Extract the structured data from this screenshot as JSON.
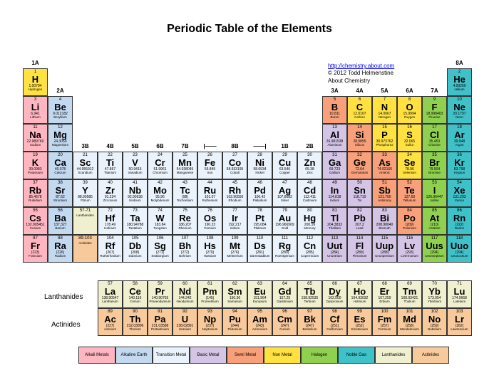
{
  "title": "Periodic Table of the Elements",
  "credits": {
    "url_text": "http://chemistry.about.com",
    "copyright": "© 2012 Todd Helmenstine",
    "site": "About Chemistry"
  },
  "cell_size": {
    "w": 35,
    "h": 39
  },
  "colors": {
    "alkali": "#ffb6c1",
    "alkaline_earth": "#c3d9f0",
    "transition": "#eaf2fb",
    "basic_metal": "#d4c5e6",
    "semi_metal": "#f7a07a",
    "non_metal": "#ffe242",
    "halogen": "#8fd14f",
    "noble_gas": "#3fc1c9",
    "lanthanide": "#f0f0d0",
    "actinide": "#f7c99b",
    "grid_border": "#333333"
  },
  "group_labels": [
    {
      "col": 0,
      "text": "1A"
    },
    {
      "col": 1,
      "text": "2A"
    },
    {
      "col": 2,
      "text": "3B"
    },
    {
      "col": 3,
      "text": "4B"
    },
    {
      "col": 4,
      "text": "5B"
    },
    {
      "col": 5,
      "text": "6B"
    },
    {
      "col": 6,
      "text": "7B"
    },
    {
      "col": 7,
      "text": "|——"
    },
    {
      "col": 8,
      "text": "8B"
    },
    {
      "col": 9,
      "text": "——|"
    },
    {
      "col": 10,
      "text": "1B"
    },
    {
      "col": 11,
      "text": "2B"
    },
    {
      "col": 12,
      "text": "3A"
    },
    {
      "col": 13,
      "text": "4A"
    },
    {
      "col": 14,
      "text": "5A"
    },
    {
      "col": 15,
      "text": "6A"
    },
    {
      "col": 16,
      "text": "7A"
    },
    {
      "col": 17,
      "text": "8A"
    }
  ],
  "group_label_rows": {
    "0": 0,
    "1": 1,
    "2": 3,
    "3": 3,
    "4": 3,
    "5": 3,
    "6": 3,
    "7": 3,
    "8": 3,
    "9": 3,
    "10": 3,
    "11": 3,
    "12": 1,
    "13": 1,
    "14": 1,
    "15": 1,
    "16": 1,
    "17": 0
  },
  "series_labels": {
    "lanthanides": "Lanthanides",
    "actinides": "Actinides"
  },
  "legend": [
    {
      "label": "Alkali Metals",
      "cat": "alkali"
    },
    {
      "label": "Alkaline Earth",
      "cat": "alkaline_earth"
    },
    {
      "label": "Transition Metal",
      "cat": "transition"
    },
    {
      "label": "Basic Metal",
      "cat": "basic_metal"
    },
    {
      "label": "Semi Metal",
      "cat": "semi_metal"
    },
    {
      "label": "Non Metal",
      "cat": "non_metal"
    },
    {
      "label": "Halogen",
      "cat": "halogen"
    },
    {
      "label": "Noble Gas",
      "cat": "noble_gas"
    },
    {
      "label": "Lanthanides",
      "cat": "lanthanide"
    },
    {
      "label": "Actinides",
      "cat": "actinide"
    }
  ],
  "elements": [
    {
      "n": 1,
      "s": "H",
      "m": "1.00794",
      "nm": "Hydrogen",
      "r": 0,
      "c": 0,
      "cat": "non_metal"
    },
    {
      "n": 2,
      "s": "He",
      "m": "4.00260",
      "nm": "Helium",
      "r": 0,
      "c": 17,
      "cat": "noble_gas"
    },
    {
      "n": 3,
      "s": "Li",
      "m": "6.941",
      "nm": "Lithium",
      "r": 1,
      "c": 0,
      "cat": "alkali"
    },
    {
      "n": 4,
      "s": "Be",
      "m": "9.012182",
      "nm": "Beryllium",
      "r": 1,
      "c": 1,
      "cat": "alkaline_earth"
    },
    {
      "n": 5,
      "s": "B",
      "m": "10.811",
      "nm": "Boron",
      "r": 1,
      "c": 12,
      "cat": "semi_metal"
    },
    {
      "n": 6,
      "s": "C",
      "m": "12.0107",
      "nm": "Carbon",
      "r": 1,
      "c": 13,
      "cat": "non_metal"
    },
    {
      "n": 7,
      "s": "N",
      "m": "14.0067",
      "nm": "Nitrogen",
      "r": 1,
      "c": 14,
      "cat": "non_metal"
    },
    {
      "n": 8,
      "s": "O",
      "m": "15.9994",
      "nm": "Oxygen",
      "r": 1,
      "c": 15,
      "cat": "non_metal"
    },
    {
      "n": 9,
      "s": "F",
      "m": "18.998403",
      "nm": "Fluorine",
      "r": 1,
      "c": 16,
      "cat": "halogen"
    },
    {
      "n": 10,
      "s": "Ne",
      "m": "20.1797",
      "nm": "Neon",
      "r": 1,
      "c": 17,
      "cat": "noble_gas"
    },
    {
      "n": 11,
      "s": "Na",
      "m": "22.989769",
      "nm": "Sodium",
      "r": 2,
      "c": 0,
      "cat": "alkali"
    },
    {
      "n": 12,
      "s": "Mg",
      "m": "24.3050",
      "nm": "Magnesium",
      "r": 2,
      "c": 1,
      "cat": "alkaline_earth"
    },
    {
      "n": 13,
      "s": "Al",
      "m": "26.981538",
      "nm": "Aluminum",
      "r": 2,
      "c": 12,
      "cat": "basic_metal"
    },
    {
      "n": 14,
      "s": "Si",
      "m": "28.0855",
      "nm": "Silicon",
      "r": 2,
      "c": 13,
      "cat": "semi_metal"
    },
    {
      "n": 15,
      "s": "P",
      "m": "30.973762",
      "nm": "Phosphorus",
      "r": 2,
      "c": 14,
      "cat": "non_metal"
    },
    {
      "n": 16,
      "s": "S",
      "m": "32.065",
      "nm": "Sulfur",
      "r": 2,
      "c": 15,
      "cat": "non_metal"
    },
    {
      "n": 17,
      "s": "Cl",
      "m": "35.453",
      "nm": "Chlorine",
      "r": 2,
      "c": 16,
      "cat": "halogen"
    },
    {
      "n": 18,
      "s": "Ar",
      "m": "39.948",
      "nm": "Argon",
      "r": 2,
      "c": 17,
      "cat": "noble_gas"
    },
    {
      "n": 19,
      "s": "K",
      "m": "39.0983",
      "nm": "Potassium",
      "r": 3,
      "c": 0,
      "cat": "alkali"
    },
    {
      "n": 20,
      "s": "Ca",
      "m": "40.078",
      "nm": "Calcium",
      "r": 3,
      "c": 1,
      "cat": "alkaline_earth"
    },
    {
      "n": 21,
      "s": "Sc",
      "m": "44.955912",
      "nm": "Scandium",
      "r": 3,
      "c": 2,
      "cat": "transition"
    },
    {
      "n": 22,
      "s": "Ti",
      "m": "47.867",
      "nm": "Titanium",
      "r": 3,
      "c": 3,
      "cat": "transition"
    },
    {
      "n": 23,
      "s": "V",
      "m": "50.9415",
      "nm": "Vanadium",
      "r": 3,
      "c": 4,
      "cat": "transition"
    },
    {
      "n": 24,
      "s": "Cr",
      "m": "51.9961",
      "nm": "Chromium",
      "r": 3,
      "c": 5,
      "cat": "transition"
    },
    {
      "n": 25,
      "s": "Mn",
      "m": "54.938045",
      "nm": "Manganese",
      "r": 3,
      "c": 6,
      "cat": "transition"
    },
    {
      "n": 26,
      "s": "Fe",
      "m": "55.845",
      "nm": "Iron",
      "r": 3,
      "c": 7,
      "cat": "transition"
    },
    {
      "n": 27,
      "s": "Co",
      "m": "58.933195",
      "nm": "Cobalt",
      "r": 3,
      "c": 8,
      "cat": "transition"
    },
    {
      "n": 28,
      "s": "Ni",
      "m": "58.6934",
      "nm": "Nickel",
      "r": 3,
      "c": 9,
      "cat": "transition"
    },
    {
      "n": 29,
      "s": "Cu",
      "m": "63.546",
      "nm": "Copper",
      "r": 3,
      "c": 10,
      "cat": "transition"
    },
    {
      "n": 30,
      "s": "Zn",
      "m": "65.38",
      "nm": "Zinc",
      "r": 3,
      "c": 11,
      "cat": "transition"
    },
    {
      "n": 31,
      "s": "Ga",
      "m": "69.723",
      "nm": "Gallium",
      "r": 3,
      "c": 12,
      "cat": "basic_metal"
    },
    {
      "n": 32,
      "s": "Ge",
      "m": "72.64",
      "nm": "Germanium",
      "r": 3,
      "c": 13,
      "cat": "semi_metal"
    },
    {
      "n": 33,
      "s": "As",
      "m": "74.92160",
      "nm": "Arsenic",
      "r": 3,
      "c": 14,
      "cat": "semi_metal"
    },
    {
      "n": 34,
      "s": "Se",
      "m": "78.96",
      "nm": "Selenium",
      "r": 3,
      "c": 15,
      "cat": "non_metal"
    },
    {
      "n": 35,
      "s": "Br",
      "m": "79.904",
      "nm": "Bromine",
      "r": 3,
      "c": 16,
      "cat": "halogen"
    },
    {
      "n": 36,
      "s": "Kr",
      "m": "83.798",
      "nm": "Krypton",
      "r": 3,
      "c": 17,
      "cat": "noble_gas"
    },
    {
      "n": 37,
      "s": "Rb",
      "m": "85.4678",
      "nm": "Rubidium",
      "r": 4,
      "c": 0,
      "cat": "alkali"
    },
    {
      "n": 38,
      "s": "Sr",
      "m": "87.62",
      "nm": "Strontium",
      "r": 4,
      "c": 1,
      "cat": "alkaline_earth"
    },
    {
      "n": 39,
      "s": "Y",
      "m": "88.90585",
      "nm": "Yttrium",
      "r": 4,
      "c": 2,
      "cat": "transition"
    },
    {
      "n": 40,
      "s": "Zr",
      "m": "91.224",
      "nm": "Zirconium",
      "r": 4,
      "c": 3,
      "cat": "transition"
    },
    {
      "n": 41,
      "s": "Nb",
      "m": "92.90638",
      "nm": "Niobium",
      "r": 4,
      "c": 4,
      "cat": "transition"
    },
    {
      "n": 42,
      "s": "Mo",
      "m": "95.96",
      "nm": "Molybdenum",
      "r": 4,
      "c": 5,
      "cat": "transition"
    },
    {
      "n": 43,
      "s": "Tc",
      "m": "(98)",
      "nm": "Technetium",
      "r": 4,
      "c": 6,
      "cat": "transition"
    },
    {
      "n": 44,
      "s": "Ru",
      "m": "101.07",
      "nm": "Ruthenium",
      "r": 4,
      "c": 7,
      "cat": "transition"
    },
    {
      "n": 45,
      "s": "Rh",
      "m": "102.90550",
      "nm": "Rhodium",
      "r": 4,
      "c": 8,
      "cat": "transition"
    },
    {
      "n": 46,
      "s": "Pd",
      "m": "106.42",
      "nm": "Palladium",
      "r": 4,
      "c": 9,
      "cat": "transition"
    },
    {
      "n": 47,
      "s": "Ag",
      "m": "107.8682",
      "nm": "Silver",
      "r": 4,
      "c": 10,
      "cat": "transition"
    },
    {
      "n": 48,
      "s": "Cd",
      "m": "112.411",
      "nm": "Cadmium",
      "r": 4,
      "c": 11,
      "cat": "transition"
    },
    {
      "n": 49,
      "s": "In",
      "m": "114.818",
      "nm": "Indium",
      "r": 4,
      "c": 12,
      "cat": "basic_metal"
    },
    {
      "n": 50,
      "s": "Sn",
      "m": "118.710",
      "nm": "Tin",
      "r": 4,
      "c": 13,
      "cat": "basic_metal"
    },
    {
      "n": 51,
      "s": "Sb",
      "m": "121.760",
      "nm": "Antimony",
      "r": 4,
      "c": 14,
      "cat": "semi_metal"
    },
    {
      "n": 52,
      "s": "Te",
      "m": "127.60",
      "nm": "Tellurium",
      "r": 4,
      "c": 15,
      "cat": "semi_metal"
    },
    {
      "n": 53,
      "s": "I",
      "m": "126.90447",
      "nm": "Iodine",
      "r": 4,
      "c": 16,
      "cat": "halogen"
    },
    {
      "n": 54,
      "s": "Xe",
      "m": "131.293",
      "nm": "Xenon",
      "r": 4,
      "c": 17,
      "cat": "noble_gas"
    },
    {
      "n": 55,
      "s": "Cs",
      "m": "132.905451",
      "nm": "Cesium",
      "r": 5,
      "c": 0,
      "cat": "alkali"
    },
    {
      "n": 56,
      "s": "Ba",
      "m": "137.327",
      "nm": "Barium",
      "r": 5,
      "c": 1,
      "cat": "alkaline_earth"
    },
    {
      "n": "57-71",
      "s": "",
      "m": "",
      "nm": "Lanthanides",
      "r": 5,
      "c": 2,
      "cat": "lanthanide"
    },
    {
      "n": 72,
      "s": "Hf",
      "m": "178.49",
      "nm": "Hafnium",
      "r": 5,
      "c": 3,
      "cat": "transition"
    },
    {
      "n": 73,
      "s": "Ta",
      "m": "180.94788",
      "nm": "Tantalum",
      "r": 5,
      "c": 4,
      "cat": "transition"
    },
    {
      "n": 74,
      "s": "W",
      "m": "183.84",
      "nm": "Tungsten",
      "r": 5,
      "c": 5,
      "cat": "transition"
    },
    {
      "n": 75,
      "s": "Re",
      "m": "186.207",
      "nm": "Rhenium",
      "r": 5,
      "c": 6,
      "cat": "transition"
    },
    {
      "n": 76,
      "s": "Os",
      "m": "190.23",
      "nm": "Osmium",
      "r": 5,
      "c": 7,
      "cat": "transition"
    },
    {
      "n": 77,
      "s": "Ir",
      "m": "192.217",
      "nm": "Iridium",
      "r": 5,
      "c": 8,
      "cat": "transition"
    },
    {
      "n": 78,
      "s": "Pt",
      "m": "195.084",
      "nm": "Platinum",
      "r": 5,
      "c": 9,
      "cat": "transition"
    },
    {
      "n": 79,
      "s": "Au",
      "m": "196.966569",
      "nm": "Gold",
      "r": 5,
      "c": 10,
      "cat": "transition"
    },
    {
      "n": 80,
      "s": "Hg",
      "m": "200.59",
      "nm": "Mercury",
      "r": 5,
      "c": 11,
      "cat": "transition"
    },
    {
      "n": 81,
      "s": "Tl",
      "m": "204.3833",
      "nm": "Thallium",
      "r": 5,
      "c": 12,
      "cat": "basic_metal"
    },
    {
      "n": 82,
      "s": "Pb",
      "m": "207.2",
      "nm": "Lead",
      "r": 5,
      "c": 13,
      "cat": "basic_metal"
    },
    {
      "n": 83,
      "s": "Bi",
      "m": "208.98040",
      "nm": "Bismuth",
      "r": 5,
      "c": 14,
      "cat": "basic_metal"
    },
    {
      "n": 84,
      "s": "Po",
      "m": "(209)",
      "nm": "Polonium",
      "r": 5,
      "c": 15,
      "cat": "semi_metal"
    },
    {
      "n": 85,
      "s": "At",
      "m": "(210)",
      "nm": "Astatine",
      "r": 5,
      "c": 16,
      "cat": "halogen"
    },
    {
      "n": 86,
      "s": "Rn",
      "m": "(222)",
      "nm": "Radon",
      "r": 5,
      "c": 17,
      "cat": "noble_gas"
    },
    {
      "n": 87,
      "s": "Fr",
      "m": "(223)",
      "nm": "Francium",
      "r": 6,
      "c": 0,
      "cat": "alkali"
    },
    {
      "n": 88,
      "s": "Ra",
      "m": "(226)",
      "nm": "Radium",
      "r": 6,
      "c": 1,
      "cat": "alkaline_earth"
    },
    {
      "n": "89-103",
      "s": "",
      "m": "",
      "nm": "Actinides",
      "r": 6,
      "c": 2,
      "cat": "actinide"
    },
    {
      "n": 104,
      "s": "Rf",
      "m": "(267)",
      "nm": "Rutherfordium",
      "r": 6,
      "c": 3,
      "cat": "transition"
    },
    {
      "n": 105,
      "s": "Db",
      "m": "(268)",
      "nm": "Dubnium",
      "r": 6,
      "c": 4,
      "cat": "transition"
    },
    {
      "n": 106,
      "s": "Sg",
      "m": "(271)",
      "nm": "Seaborgium",
      "r": 6,
      "c": 5,
      "cat": "transition"
    },
    {
      "n": 107,
      "s": "Bh",
      "m": "(272)",
      "nm": "Bohrium",
      "r": 6,
      "c": 6,
      "cat": "transition"
    },
    {
      "n": 108,
      "s": "Hs",
      "m": "(270)",
      "nm": "Hassium",
      "r": 6,
      "c": 7,
      "cat": "transition"
    },
    {
      "n": 109,
      "s": "Mt",
      "m": "(276)",
      "nm": "Meitnerium",
      "r": 6,
      "c": 8,
      "cat": "transition"
    },
    {
      "n": 110,
      "s": "Ds",
      "m": "(281)",
      "nm": "Darmstadtium",
      "r": 6,
      "c": 9,
      "cat": "transition"
    },
    {
      "n": 111,
      "s": "Rg",
      "m": "(280)",
      "nm": "Roentgenium",
      "r": 6,
      "c": 10,
      "cat": "transition"
    },
    {
      "n": 112,
      "s": "Cn",
      "m": "(285)",
      "nm": "Copernicium",
      "r": 6,
      "c": 11,
      "cat": "transition"
    },
    {
      "n": 113,
      "s": "Uut",
      "m": "(284)",
      "nm": "Ununtrium",
      "r": 6,
      "c": 12,
      "cat": "basic_metal"
    },
    {
      "n": 114,
      "s": "Fl",
      "m": "(289)",
      "nm": "Flerovium",
      "r": 6,
      "c": 13,
      "cat": "basic_metal"
    },
    {
      "n": 115,
      "s": "Uup",
      "m": "(288)",
      "nm": "Ununpentium",
      "r": 6,
      "c": 14,
      "cat": "basic_metal"
    },
    {
      "n": 116,
      "s": "Lv",
      "m": "(293)",
      "nm": "Livermorium",
      "r": 6,
      "c": 15,
      "cat": "basic_metal"
    },
    {
      "n": 117,
      "s": "Uus",
      "m": "(294)",
      "nm": "Ununseptium",
      "r": 6,
      "c": 16,
      "cat": "halogen"
    },
    {
      "n": 118,
      "s": "Uuo",
      "m": "(294)",
      "nm": "Ununoctium",
      "r": 6,
      "c": 17,
      "cat": "noble_gas"
    },
    {
      "n": 57,
      "s": "La",
      "m": "138.90547",
      "nm": "Lanthanum",
      "r": 8,
      "c": 3,
      "cat": "lanthanide"
    },
    {
      "n": 58,
      "s": "Ce",
      "m": "140.116",
      "nm": "Cerium",
      "r": 8,
      "c": 4,
      "cat": "lanthanide"
    },
    {
      "n": 59,
      "s": "Pr",
      "m": "140.90765",
      "nm": "Praseodymium",
      "r": 8,
      "c": 5,
      "cat": "lanthanide"
    },
    {
      "n": 60,
      "s": "Nd",
      "m": "144.242",
      "nm": "Neodymium",
      "r": 8,
      "c": 6,
      "cat": "lanthanide"
    },
    {
      "n": 61,
      "s": "Pm",
      "m": "(145)",
      "nm": "Promethium",
      "r": 8,
      "c": 7,
      "cat": "lanthanide"
    },
    {
      "n": 62,
      "s": "Sm",
      "m": "150.36",
      "nm": "Samarium",
      "r": 8,
      "c": 8,
      "cat": "lanthanide"
    },
    {
      "n": 63,
      "s": "Eu",
      "m": "151.964",
      "nm": "Europium",
      "r": 8,
      "c": 9,
      "cat": "lanthanide"
    },
    {
      "n": 64,
      "s": "Gd",
      "m": "157.25",
      "nm": "Gadolinium",
      "r": 8,
      "c": 10,
      "cat": "lanthanide"
    },
    {
      "n": 65,
      "s": "Tb",
      "m": "158.92535",
      "nm": "Terbium",
      "r": 8,
      "c": 11,
      "cat": "lanthanide"
    },
    {
      "n": 66,
      "s": "Dy",
      "m": "162.500",
      "nm": "Dysprosium",
      "r": 8,
      "c": 12,
      "cat": "lanthanide"
    },
    {
      "n": 67,
      "s": "Ho",
      "m": "164.93032",
      "nm": "Holmium",
      "r": 8,
      "c": 13,
      "cat": "lanthanide"
    },
    {
      "n": 68,
      "s": "Er",
      "m": "167.259",
      "nm": "Erbium",
      "r": 8,
      "c": 14,
      "cat": "lanthanide"
    },
    {
      "n": 69,
      "s": "Tm",
      "m": "168.93421",
      "nm": "Thulium",
      "r": 8,
      "c": 15,
      "cat": "lanthanide"
    },
    {
      "n": 70,
      "s": "Yb",
      "m": "173.054",
      "nm": "Ytterbium",
      "r": 8,
      "c": 16,
      "cat": "lanthanide"
    },
    {
      "n": 71,
      "s": "Lu",
      "m": "174.9668",
      "nm": "Lutetium",
      "r": 8,
      "c": 17,
      "cat": "lanthanide"
    },
    {
      "n": 89,
      "s": "Ac",
      "m": "(227)",
      "nm": "Actinium",
      "r": 9,
      "c": 3,
      "cat": "actinide"
    },
    {
      "n": 90,
      "s": "Th",
      "m": "232.03806",
      "nm": "Thorium",
      "r": 9,
      "c": 4,
      "cat": "actinide"
    },
    {
      "n": 91,
      "s": "Pa",
      "m": "231.03588",
      "nm": "Protactinium",
      "r": 9,
      "c": 5,
      "cat": "actinide"
    },
    {
      "n": 92,
      "s": "U",
      "m": "238.02891",
      "nm": "Uranium",
      "r": 9,
      "c": 6,
      "cat": "actinide"
    },
    {
      "n": 93,
      "s": "Np",
      "m": "(237)",
      "nm": "Neptunium",
      "r": 9,
      "c": 7,
      "cat": "actinide"
    },
    {
      "n": 94,
      "s": "Pu",
      "m": "(244)",
      "nm": "Plutonium",
      "r": 9,
      "c": 8,
      "cat": "actinide"
    },
    {
      "n": 95,
      "s": "Am",
      "m": "(243)",
      "nm": "Americium",
      "r": 9,
      "c": 9,
      "cat": "actinide"
    },
    {
      "n": 96,
      "s": "Cm",
      "m": "(247)",
      "nm": "Curium",
      "r": 9,
      "c": 10,
      "cat": "actinide"
    },
    {
      "n": 97,
      "s": "Bk",
      "m": "(247)",
      "nm": "Berkelium",
      "r": 9,
      "c": 11,
      "cat": "actinide"
    },
    {
      "n": 98,
      "s": "Cf",
      "m": "(251)",
      "nm": "Californium",
      "r": 9,
      "c": 12,
      "cat": "actinide"
    },
    {
      "n": 99,
      "s": "Es",
      "m": "(252)",
      "nm": "Einsteinium",
      "r": 9,
      "c": 13,
      "cat": "actinide"
    },
    {
      "n": 100,
      "s": "Fm",
      "m": "(257)",
      "nm": "Fermium",
      "r": 9,
      "c": 14,
      "cat": "actinide"
    },
    {
      "n": 101,
      "s": "Md",
      "m": "(258)",
      "nm": "Mendelevium",
      "r": 9,
      "c": 15,
      "cat": "actinide"
    },
    {
      "n": 102,
      "s": "No",
      "m": "(259)",
      "nm": "Nobelium",
      "r": 9,
      "c": 16,
      "cat": "actinide"
    },
    {
      "n": 103,
      "s": "Lr",
      "m": "(262)",
      "nm": "Lawrencium",
      "r": 9,
      "c": 17,
      "cat": "actinide"
    }
  ]
}
